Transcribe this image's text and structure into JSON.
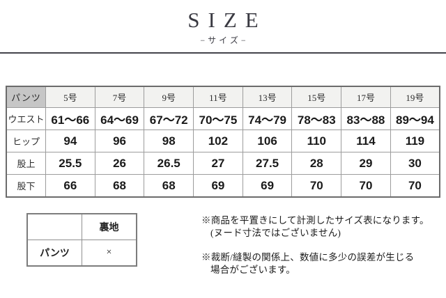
{
  "title": "SIZE",
  "subtitle": "−サイズ−",
  "size_table": {
    "corner_label": "パンツ",
    "column_headers": [
      "5号",
      "7号",
      "9号",
      "11号",
      "13号",
      "15号",
      "17号",
      "19号"
    ],
    "rows": [
      {
        "label": "ウエスト",
        "values": [
          "61〜66",
          "64〜69",
          "67〜72",
          "70〜75",
          "74〜79",
          "78〜83",
          "83〜88",
          "89〜94"
        ]
      },
      {
        "label": "ヒップ",
        "values": [
          "94",
          "96",
          "98",
          "102",
          "106",
          "110",
          "114",
          "119"
        ]
      },
      {
        "label": "股上",
        "values": [
          "25.5",
          "26",
          "26.5",
          "27",
          "27.5",
          "28",
          "29",
          "30"
        ]
      },
      {
        "label": "股下",
        "values": [
          "66",
          "68",
          "68",
          "69",
          "69",
          "70",
          "70",
          "70"
        ]
      }
    ]
  },
  "lining_table": {
    "corner_label": "",
    "column_header": "裏地",
    "rows": [
      {
        "label": "パンツ",
        "value": "×"
      }
    ]
  },
  "notes": [
    {
      "line1": "※商品を平置きにして計測したサイズ表になります。",
      "line2": "(ヌード寸法ではございません)"
    },
    {
      "line1": "※裁断/縫製の関係上、数値に多少の誤差が生じる",
      "line2": "場合がございます。"
    }
  ],
  "colors": {
    "title_color": "#3a3a42",
    "divider_color": "#43434b",
    "corner_header_bg": "#c6c6c6",
    "column_header_bg": "#f2f2f0",
    "cell_border": "#9c9c9c",
    "outer_border": "#6b6b6b",
    "small_table_border": "#8f8f8f",
    "small_table_outer_border": "#7c7c7c"
  }
}
